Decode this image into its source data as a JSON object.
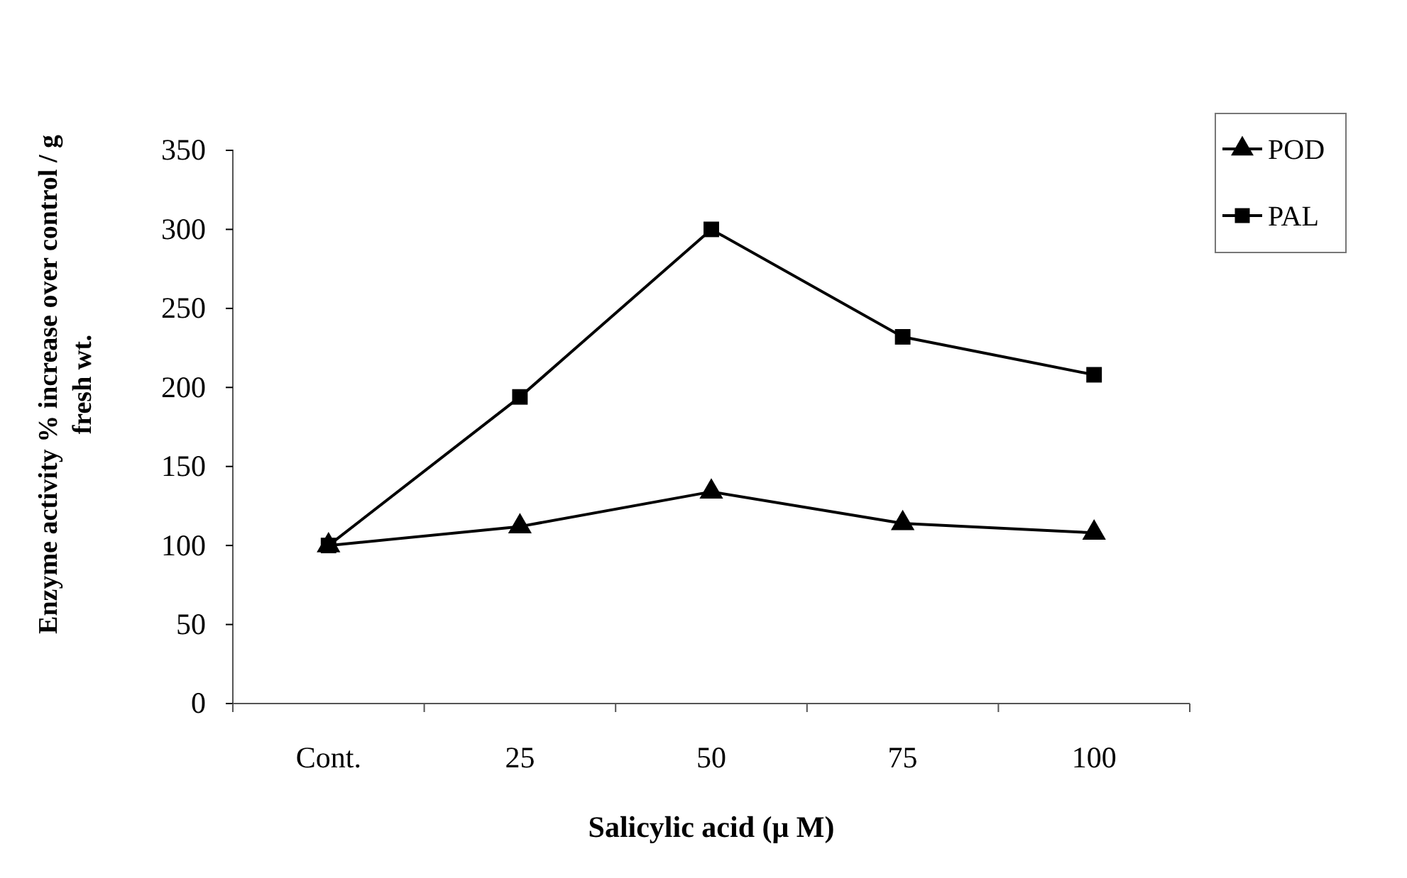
{
  "chart_data": {
    "type": "line",
    "xlabel": "Salicylic acid (μ M)",
    "ylabel": "Enzyme activity % increase over control / g fresh wt.",
    "categories": [
      "Cont.",
      "25",
      "50",
      "75",
      "100"
    ],
    "series": [
      {
        "name": "POD",
        "color": "#000000",
        "marker": "triangle",
        "values": [
          100,
          112,
          134,
          114,
          108
        ]
      },
      {
        "name": "PAL",
        "color": "#000000",
        "marker": "square",
        "values": [
          100,
          194,
          300,
          232,
          208
        ]
      }
    ],
    "ylim": [
      0,
      350
    ],
    "yticks": [
      0,
      50,
      100,
      150,
      200,
      250,
      300,
      350
    ],
    "grid": false,
    "legend": "top right",
    "line_style": "solid"
  }
}
